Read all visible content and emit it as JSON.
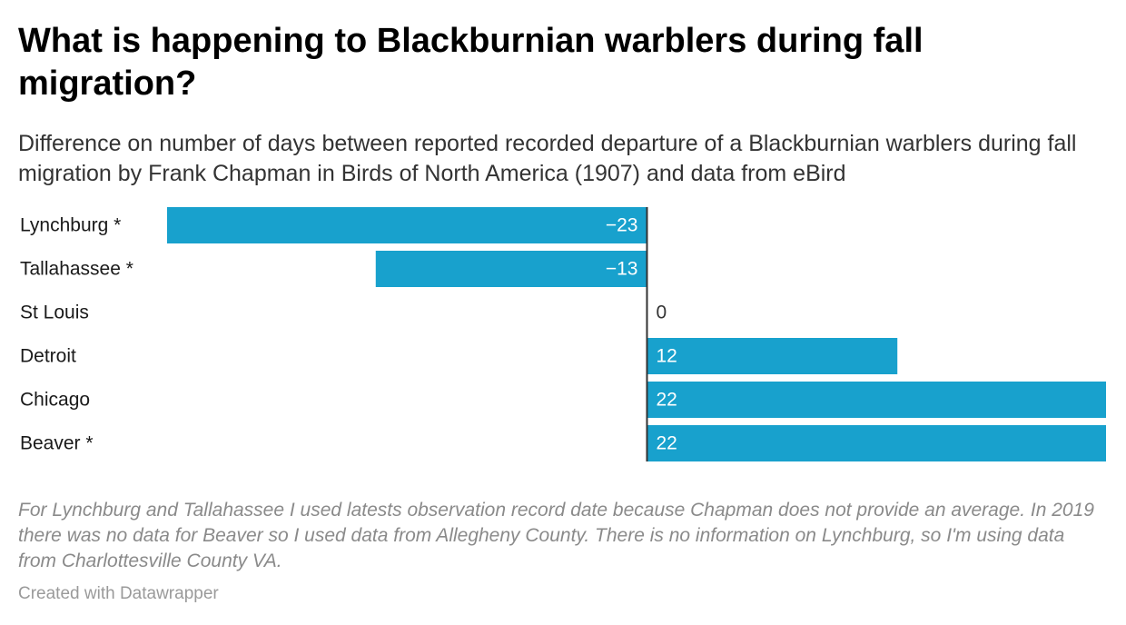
{
  "title": "What is happening to Blackburnian warblers during fall migration?",
  "subtitle": "Difference on number of days between reported recorded departure of a Blackburnian warblers during fall migration by Frank Chapman in Birds of North America (1907) and data from eBird",
  "notes": "For Lynchburg and Tallahassee I used latests observation record date because Chapman does not provide an average. In 2019 there was no data for Beaver so I used data from Allegheny County. There is no information on Lynchburg, so I'm using data from Charlottesville County VA.",
  "credit": "Created with Datawrapper",
  "colors": {
    "bar": "#18a1cd",
    "baseline": "#333333",
    "label_inside": "#ffffff",
    "label_outside": "#333333"
  },
  "chart_data": {
    "type": "bar",
    "orientation": "horizontal",
    "categories": [
      "Lynchburg *",
      "Tallahassee *",
      "St Louis",
      "Detroit",
      "Chicago",
      "Beaver *"
    ],
    "values": [
      -23,
      -13,
      0,
      12,
      22,
      22
    ],
    "value_labels": [
      "−23",
      "−13",
      "0",
      "12",
      "22",
      "22"
    ],
    "xlim": [
      -23,
      22
    ],
    "grid": false,
    "title": "",
    "xlabel": "",
    "ylabel": ""
  }
}
